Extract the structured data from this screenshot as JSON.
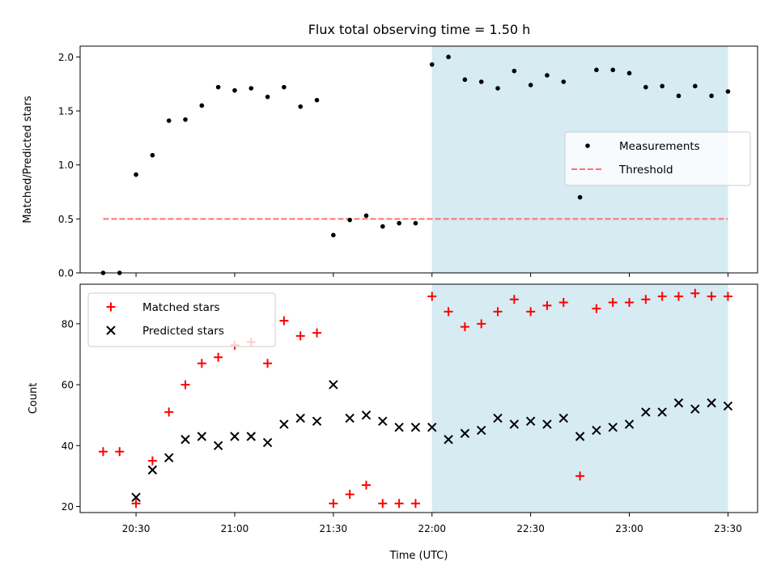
{
  "chart_data": [
    {
      "type": "scatter",
      "title": "Flux total observing time = 1.50 h",
      "xlabel": "",
      "ylabel": "Matched/Predicted stars",
      "ylim": [
        0,
        2.1
      ],
      "yticks": [
        "0.0",
        "0.5",
        "1.0",
        "1.5",
        "2.0"
      ],
      "ytick_values": [
        0,
        0.5,
        1.0,
        1.5,
        2.0
      ],
      "shaded_region": {
        "x_start": "22:00",
        "x_end": "23:30",
        "color": "#add8e6"
      },
      "legend": {
        "placement": "center-right"
      },
      "series": [
        {
          "name": "Measurements",
          "marker": "dot",
          "color": "#000000",
          "x": [
            "20:20",
            "20:25",
            "20:30",
            "20:35",
            "20:40",
            "20:45",
            "20:50",
            "20:55",
            "21:00",
            "21:05",
            "21:10",
            "21:15",
            "21:20",
            "21:25",
            "21:30",
            "21:35",
            "21:40",
            "21:45",
            "21:50",
            "21:55",
            "22:00",
            "22:05",
            "22:10",
            "22:15",
            "22:20",
            "22:25",
            "22:30",
            "22:35",
            "22:40",
            "22:45",
            "22:50",
            "22:55",
            "23:00",
            "23:05",
            "23:10",
            "23:15",
            "23:20",
            "23:25",
            "23:30"
          ],
          "y": [
            0.0,
            0.0,
            0.91,
            1.09,
            1.41,
            1.42,
            1.55,
            1.72,
            1.69,
            1.71,
            1.63,
            1.72,
            1.54,
            1.6,
            0.35,
            0.49,
            0.53,
            0.43,
            0.46,
            0.46,
            1.93,
            2.0,
            1.79,
            1.77,
            1.71,
            1.87,
            1.74,
            1.83,
            1.77,
            0.7,
            1.88,
            1.88,
            1.85,
            1.72,
            1.73,
            1.64,
            1.73,
            1.64,
            1.68
          ]
        },
        {
          "name": "Threshold",
          "marker": "dashed-line",
          "color": "#ff7070",
          "x": [
            "20:20",
            "23:30"
          ],
          "y": [
            0.5,
            0.5
          ]
        }
      ]
    },
    {
      "type": "scatter",
      "title": "",
      "xlabel": "Time (UTC)",
      "ylabel": "Count",
      "ylim": [
        18,
        93
      ],
      "yticks": [
        "20",
        "40",
        "60",
        "80"
      ],
      "ytick_values": [
        20,
        40,
        60,
        80
      ],
      "xticks": [
        "20:30",
        "21:00",
        "21:30",
        "22:00",
        "22:30",
        "23:00",
        "23:30"
      ],
      "xlim": [
        "20:13",
        "23:39"
      ],
      "shaded_region": {
        "x_start": "22:00",
        "x_end": "23:30",
        "color": "#add8e6"
      },
      "legend": {
        "placement": "top-left"
      },
      "series": [
        {
          "name": "Matched stars",
          "marker": "plus",
          "color": "#ff0000",
          "x": [
            "20:20",
            "20:25",
            "20:30",
            "20:35",
            "20:40",
            "20:45",
            "20:50",
            "20:55",
            "21:00",
            "21:05",
            "21:10",
            "21:15",
            "21:20",
            "21:25",
            "21:30",
            "21:35",
            "21:40",
            "21:45",
            "21:50",
            "21:55",
            "22:00",
            "22:05",
            "22:10",
            "22:15",
            "22:20",
            "22:25",
            "22:30",
            "22:35",
            "22:40",
            "22:45",
            "22:50",
            "22:55",
            "23:00",
            "23:05",
            "23:10",
            "23:15",
            "23:20",
            "23:25",
            "23:30"
          ],
          "y": [
            38,
            38,
            21,
            35,
            51,
            60,
            67,
            69,
            73,
            74,
            67,
            81,
            76,
            77,
            21,
            24,
            27,
            21,
            21,
            21,
            89,
            84,
            79,
            80,
            84,
            88,
            84,
            86,
            87,
            30,
            85,
            87,
            87,
            88,
            89,
            89,
            90,
            89,
            89
          ]
        },
        {
          "name": "Predicted stars",
          "marker": "x",
          "color": "#000000",
          "x": [
            "20:30",
            "20:35",
            "20:40",
            "20:45",
            "20:50",
            "20:55",
            "21:00",
            "21:05",
            "21:10",
            "21:15",
            "21:20",
            "21:25",
            "21:30",
            "21:35",
            "21:40",
            "21:45",
            "21:50",
            "21:55",
            "22:00",
            "22:05",
            "22:10",
            "22:15",
            "22:20",
            "22:25",
            "22:30",
            "22:35",
            "22:40",
            "22:45",
            "22:50",
            "22:55",
            "23:00",
            "23:05",
            "23:10",
            "23:15",
            "23:20",
            "23:25",
            "23:30"
          ],
          "y": [
            23,
            32,
            36,
            42,
            43,
            40,
            43,
            43,
            41,
            47,
            49,
            48,
            60,
            49,
            50,
            48,
            46,
            46,
            46,
            42,
            44,
            45,
            49,
            47,
            48,
            47,
            49,
            43,
            45,
            46,
            47,
            51,
            51,
            54,
            52,
            54,
            53
          ]
        }
      ]
    }
  ]
}
